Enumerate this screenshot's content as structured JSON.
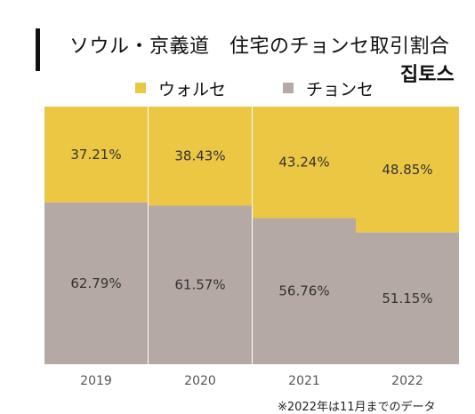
{
  "header": {
    "title": "ソウル・京義道　住宅のチョンセ取引割合",
    "brand": "집토스"
  },
  "legend": [
    {
      "label": "ウォルセ",
      "color": "#ECC744"
    },
    {
      "label": "チョンセ",
      "color": "#B5AAA3"
    }
  ],
  "footnote": "※2022年は11月までのデータ",
  "chart_data": {
    "type": "bar",
    "stacked": true,
    "normalized": true,
    "categories": [
      "2019",
      "2020",
      "2021",
      "2022"
    ],
    "series": [
      {
        "name": "チョンセ",
        "color": "#B5AAA3",
        "values": [
          62.79,
          61.57,
          56.76,
          51.15
        ],
        "labels": [
          "62.79%",
          "61.57%",
          "56.76%",
          "51.15%"
        ]
      },
      {
        "name": "ウォルセ",
        "color": "#ECC744",
        "values": [
          37.21,
          38.43,
          43.24,
          48.85
        ],
        "labels": [
          "37.21%",
          "38.43%",
          "43.24%",
          "48.85%"
        ]
      }
    ],
    "title": "ソウル・京義道　住宅のチョンセ取引割合",
    "xlabel": "",
    "ylabel": "",
    "ylim": [
      0,
      100
    ],
    "grid": false,
    "legend_position": "top"
  }
}
